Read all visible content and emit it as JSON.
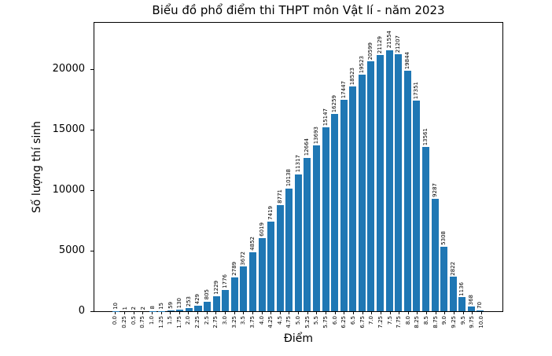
{
  "figure": {
    "background": "#ffffff"
  },
  "chart_data": {
    "type": "bar",
    "title": "Biểu đồ phổ điểm thi THPT môn Vật lí - năm 2023",
    "xlabel": "Điểm",
    "ylabel": "Số lượng thí sinh",
    "categories": [
      "0.0",
      "0.25",
      "0.5",
      "0.75",
      "1.0",
      "1.25",
      "1.5",
      "1.75",
      "2.0",
      "2.25",
      "2.5",
      "2.75",
      "3.0",
      "3.25",
      "3.5",
      "3.75",
      "4.0",
      "4.25",
      "4.5",
      "4.75",
      "5.0",
      "5.25",
      "5.5",
      "5.75",
      "6.0",
      "6.25",
      "6.5",
      "6.75",
      "7.0",
      "7.25",
      "7.5",
      "7.75",
      "8.0",
      "8.25",
      "8.5",
      "8.75",
      "9.0",
      "9.25",
      "9.5",
      "9.75",
      "10.0"
    ],
    "values": [
      10,
      1,
      2,
      2,
      8,
      15,
      59,
      130,
      253,
      429,
      805,
      1229,
      1776,
      2789,
      3672,
      4852,
      6019,
      7419,
      8771,
      10138,
      11317,
      12664,
      13693,
      15147,
      16259,
      17447,
      18523,
      19523,
      20599,
      21129,
      21554,
      21207,
      19844,
      17351,
      13561,
      9287,
      5308,
      2822,
      1136,
      368,
      70
    ],
    "yticks": [
      0,
      5000,
      10000,
      15000,
      20000
    ],
    "ylim": [
      0,
      23800
    ],
    "bar_color": "#1f77b4",
    "grid": false,
    "legend_position": "none",
    "bar_value_labels_shown": true,
    "tick_label_rotation_deg": 90
  }
}
